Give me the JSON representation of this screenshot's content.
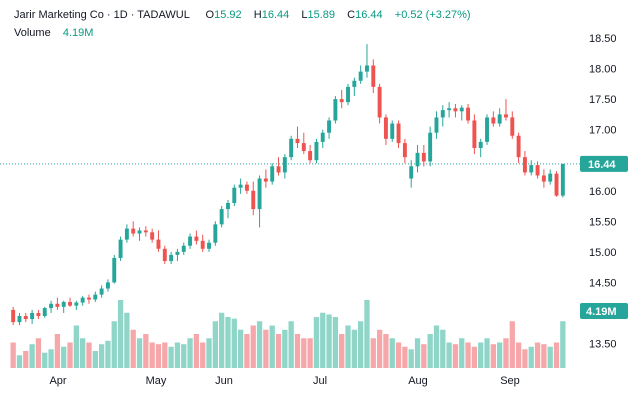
{
  "header": {
    "symbol": "Jarir Marketing Co · 1D · TADAWUL",
    "open_label": "O",
    "open_value": "15.92",
    "high_label": "H",
    "high_value": "16.44",
    "low_label": "L",
    "low_value": "15.89",
    "close_label": "C",
    "close_value": "16.44",
    "change": "+0.52 (+3.27%)",
    "volume_label": "Volume",
    "volume_value": "4.19M"
  },
  "price_tag": "16.44",
  "volume_tag": "4.19M",
  "colors": {
    "up": "#26a69a",
    "down": "#ef5350",
    "vol_up": "#8fd6c9",
    "vol_down": "#f5a7aa",
    "tag": "#26a69a",
    "text": "#131722"
  },
  "chart_data": {
    "type": "candlestick",
    "y_ticks": [
      "18.50",
      "18.00",
      "17.50",
      "17.00",
      "16.50",
      "16.00",
      "15.50",
      "15.00",
      "14.50",
      "14.00",
      "13.50"
    ],
    "ylim": [
      13.0,
      18.75
    ],
    "x_ticks": [
      "Apr",
      "May",
      "Jun",
      "Jul",
      "Aug",
      "Sep"
    ],
    "last_price": 16.44,
    "volume_scale_max": 1.0,
    "candles": [
      [
        14.05,
        14.1,
        13.8,
        13.85,
        0.3
      ],
      [
        13.85,
        14.0,
        13.8,
        13.95,
        0.15
      ],
      [
        13.95,
        14.0,
        13.85,
        13.9,
        0.2
      ],
      [
        13.9,
        14.05,
        13.82,
        14.0,
        0.28
      ],
      [
        14.0,
        14.05,
        13.9,
        13.95,
        0.35
      ],
      [
        13.95,
        14.1,
        13.92,
        14.08,
        0.18
      ],
      [
        14.08,
        14.2,
        14.0,
        14.15,
        0.22
      ],
      [
        14.15,
        14.25,
        14.05,
        14.1,
        0.4
      ],
      [
        14.1,
        14.2,
        14.0,
        14.18,
        0.25
      ],
      [
        14.18,
        14.25,
        14.1,
        14.12,
        0.3
      ],
      [
        14.12,
        14.2,
        14.05,
        14.17,
        0.5
      ],
      [
        14.17,
        14.28,
        14.12,
        14.25,
        0.35
      ],
      [
        14.25,
        14.3,
        14.15,
        14.22,
        0.3
      ],
      [
        14.22,
        14.35,
        14.18,
        14.3,
        0.2
      ],
      [
        14.3,
        14.45,
        14.25,
        14.4,
        0.28
      ],
      [
        14.4,
        14.55,
        14.35,
        14.5,
        0.32
      ],
      [
        14.5,
        14.95,
        14.48,
        14.9,
        0.55
      ],
      [
        14.9,
        15.25,
        14.85,
        15.2,
        0.8
      ],
      [
        15.2,
        15.45,
        15.15,
        15.38,
        0.65
      ],
      [
        15.38,
        15.5,
        15.25,
        15.3,
        0.45
      ],
      [
        15.3,
        15.4,
        15.18,
        15.35,
        0.35
      ],
      [
        15.35,
        15.42,
        15.25,
        15.32,
        0.4
      ],
      [
        15.32,
        15.38,
        15.15,
        15.2,
        0.3
      ],
      [
        15.2,
        15.35,
        15.0,
        15.05,
        0.28
      ],
      [
        15.05,
        15.1,
        14.8,
        14.85,
        0.3
      ],
      [
        14.85,
        15.0,
        14.8,
        14.95,
        0.25
      ],
      [
        14.95,
        15.05,
        14.85,
        15.0,
        0.3
      ],
      [
        15.0,
        15.15,
        14.95,
        15.1,
        0.28
      ],
      [
        15.1,
        15.3,
        15.05,
        15.25,
        0.35
      ],
      [
        15.25,
        15.35,
        15.12,
        15.18,
        0.4
      ],
      [
        15.18,
        15.28,
        15.0,
        15.05,
        0.3
      ],
      [
        15.05,
        15.2,
        15.0,
        15.15,
        0.35
      ],
      [
        15.15,
        15.5,
        15.1,
        15.45,
        0.55
      ],
      [
        15.45,
        15.75,
        15.4,
        15.7,
        0.65
      ],
      [
        15.7,
        15.85,
        15.55,
        15.8,
        0.6
      ],
      [
        15.8,
        16.1,
        15.75,
        16.05,
        0.58
      ],
      [
        16.05,
        16.2,
        15.95,
        16.1,
        0.45
      ],
      [
        16.1,
        16.15,
        15.95,
        16.0,
        0.4
      ],
      [
        16.0,
        16.15,
        15.6,
        15.7,
        0.5
      ],
      [
        15.7,
        16.25,
        15.4,
        16.2,
        0.55
      ],
      [
        16.2,
        16.35,
        16.05,
        16.15,
        0.45
      ],
      [
        16.15,
        16.45,
        16.1,
        16.4,
        0.5
      ],
      [
        16.4,
        16.55,
        16.25,
        16.3,
        0.4
      ],
      [
        16.3,
        16.6,
        16.2,
        16.55,
        0.45
      ],
      [
        16.55,
        16.9,
        16.5,
        16.85,
        0.55
      ],
      [
        16.85,
        17.05,
        16.7,
        16.78,
        0.4
      ],
      [
        16.78,
        16.95,
        16.6,
        16.65,
        0.35
      ],
      [
        16.65,
        16.75,
        16.45,
        16.5,
        0.35
      ],
      [
        16.5,
        16.85,
        16.45,
        16.8,
        0.6
      ],
      [
        16.8,
        17.0,
        16.7,
        16.95,
        0.65
      ],
      [
        16.95,
        17.2,
        16.85,
        17.15,
        0.63
      ],
      [
        17.15,
        17.55,
        17.1,
        17.5,
        0.6
      ],
      [
        17.5,
        17.65,
        17.35,
        17.45,
        0.4
      ],
      [
        17.45,
        17.75,
        17.4,
        17.7,
        0.5
      ],
      [
        17.7,
        17.85,
        17.55,
        17.8,
        0.45
      ],
      [
        17.8,
        18.05,
        17.75,
        17.95,
        0.55
      ],
      [
        17.95,
        18.4,
        17.85,
        18.05,
        0.8
      ],
      [
        18.05,
        18.15,
        17.6,
        17.7,
        0.35
      ],
      [
        17.7,
        17.75,
        17.1,
        17.2,
        0.45
      ],
      [
        17.2,
        17.25,
        16.75,
        16.85,
        0.4
      ],
      [
        16.85,
        17.15,
        16.8,
        17.1,
        0.35
      ],
      [
        17.1,
        17.15,
        16.7,
        16.78,
        0.3
      ],
      [
        16.78,
        16.85,
        16.45,
        16.55,
        0.25
      ],
      [
        16.2,
        16.5,
        16.05,
        16.4,
        0.22
      ],
      [
        16.4,
        16.75,
        16.3,
        16.62,
        0.35
      ],
      [
        16.62,
        16.75,
        16.4,
        16.48,
        0.28
      ],
      [
        16.48,
        17.05,
        16.4,
        16.95,
        0.4
      ],
      [
        16.95,
        17.3,
        16.85,
        17.2,
        0.5
      ],
      [
        17.2,
        17.4,
        17.05,
        17.32,
        0.45
      ],
      [
        17.32,
        17.45,
        17.2,
        17.35,
        0.3
      ],
      [
        17.35,
        17.42,
        17.2,
        17.3,
        0.28
      ],
      [
        17.3,
        17.4,
        17.15,
        17.36,
        0.35
      ],
      [
        17.36,
        17.42,
        17.1,
        17.15,
        0.3
      ],
      [
        17.15,
        17.25,
        16.6,
        16.7,
        0.25
      ],
      [
        16.7,
        16.85,
        16.55,
        16.8,
        0.3
      ],
      [
        16.8,
        17.25,
        16.75,
        17.2,
        0.35
      ],
      [
        17.2,
        17.3,
        17.05,
        17.1,
        0.28
      ],
      [
        17.1,
        17.35,
        17.05,
        17.25,
        0.3
      ],
      [
        17.25,
        17.5,
        17.15,
        17.2,
        0.35
      ],
      [
        17.2,
        17.3,
        16.85,
        16.9,
        0.55
      ],
      [
        16.9,
        16.95,
        16.45,
        16.55,
        0.3
      ],
      [
        16.55,
        16.65,
        16.25,
        16.3,
        0.22
      ],
      [
        16.3,
        16.5,
        16.25,
        16.42,
        0.25
      ],
      [
        16.42,
        16.48,
        16.2,
        16.25,
        0.3
      ],
      [
        16.25,
        16.35,
        16.05,
        16.15,
        0.28
      ],
      [
        16.15,
        16.35,
        16.1,
        16.28,
        0.25
      ],
      [
        16.28,
        16.32,
        15.9,
        15.92,
        0.3
      ],
      [
        15.92,
        16.44,
        15.89,
        16.44,
        0.55
      ]
    ]
  }
}
